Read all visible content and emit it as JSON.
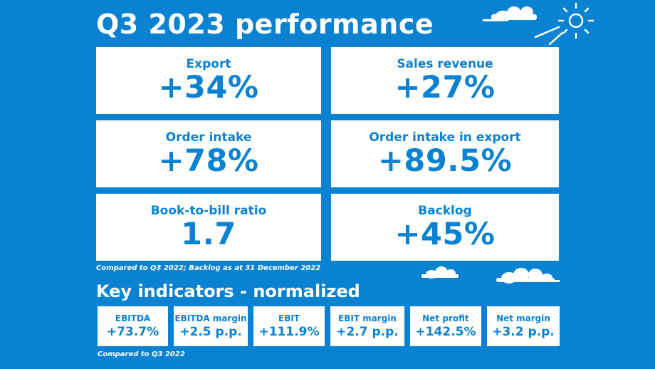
{
  "header": {
    "title": "Q3 2023 performance"
  },
  "metrics": [
    {
      "label": "Export",
      "value": "+34%"
    },
    {
      "label": "Sales revenue",
      "value": "+27%"
    },
    {
      "label": "Order intake",
      "value": "+78%"
    },
    {
      "label": "Order intake in export",
      "value": "+89.5%"
    },
    {
      "label": "Book-to-bill ratio",
      "value": "1.7"
    },
    {
      "label": "Backlog",
      "value": "+45%"
    }
  ],
  "metrics_note": "Compared to Q3 2022; Backlog as at 31 December 2022",
  "key_indicators": {
    "title": "Key indicators - normalized",
    "items": [
      {
        "label": "EBITDA",
        "value": "+73.7%"
      },
      {
        "label": "EBITDA margin",
        "value": "+2.5 p.p."
      },
      {
        "label": "EBIT",
        "value": "+111.9%"
      },
      {
        "label": "EBIT margin",
        "value": "+2.7 p.p."
      },
      {
        "label": "Net profit",
        "value": "+142.5%"
      },
      {
        "label": "Net margin",
        "value": "+3.2 p.p."
      }
    ],
    "note": "Compared to Q3 2022"
  },
  "colors": {
    "background": "#0a82d2",
    "card": "#ffffff",
    "accent": "#0a82d2"
  },
  "icons": [
    "cloud-icon",
    "sun-icon"
  ]
}
